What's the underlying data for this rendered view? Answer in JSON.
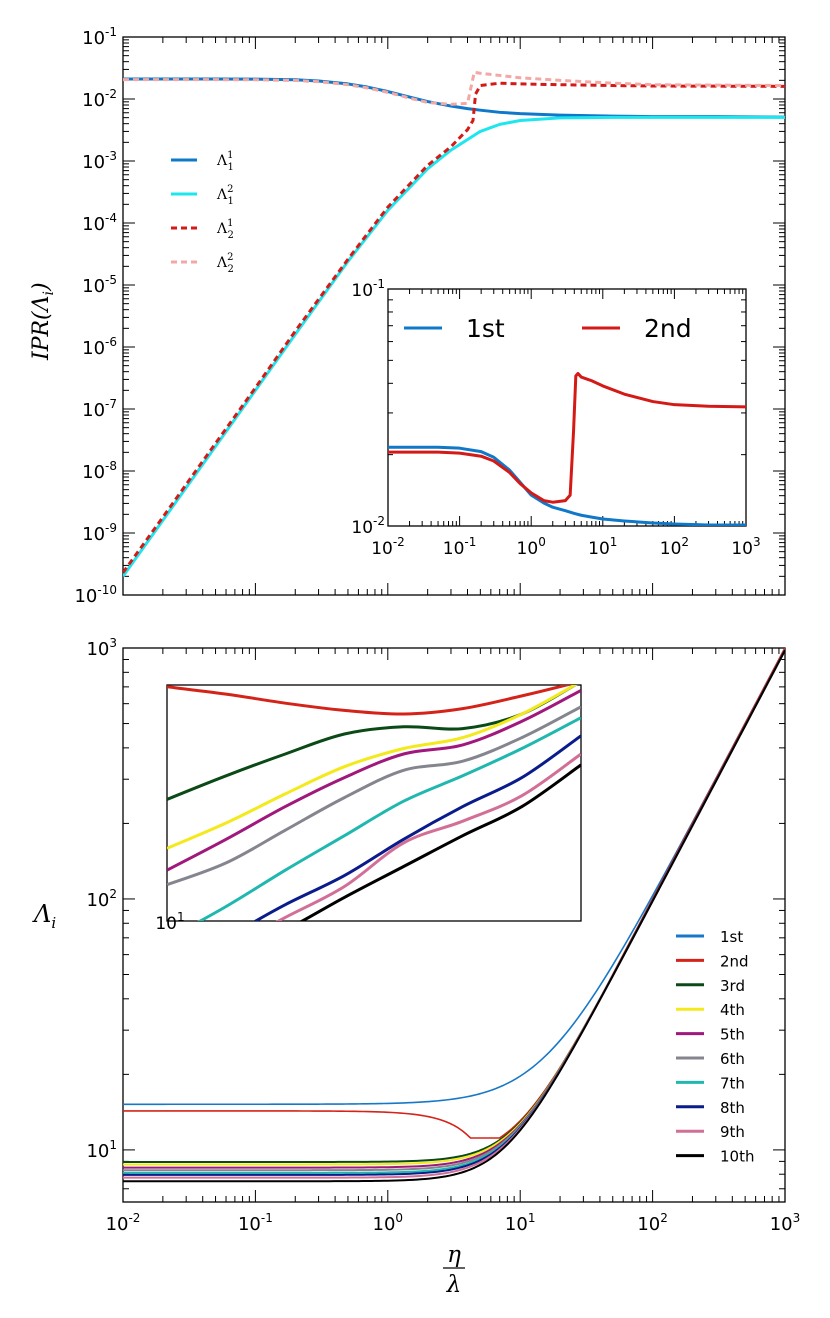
{
  "chart_data": [
    {
      "id": "top",
      "type": "line",
      "xscale": "log",
      "yscale": "log",
      "xlim": [
        0.01,
        1000
      ],
      "ylim": [
        1e-10,
        0.1
      ],
      "xlabel": "",
      "ylabel": "IPR(Λ_i)",
      "xticks_shown": false,
      "yticks": [
        {
          "b": "10",
          "e": "-10"
        },
        {
          "b": "10",
          "e": "-9"
        },
        {
          "b": "10",
          "e": "-8"
        },
        {
          "b": "10",
          "e": "-7"
        },
        {
          "b": "10",
          "e": "-6"
        },
        {
          "b": "10",
          "e": "-5"
        },
        {
          "b": "10",
          "e": "-4"
        },
        {
          "b": "10",
          "e": "-3"
        },
        {
          "b": "10",
          "e": "-2"
        },
        {
          "b": "10",
          "e": "-1"
        }
      ],
      "legend_position": "left",
      "series": [
        {
          "name": "Λ₁¹",
          "base": "Λ",
          "sub": "1",
          "sup": "1",
          "color": "#0f78c8",
          "dash": "solid",
          "x": [
            0.01,
            0.05,
            0.1,
            0.2,
            0.3,
            0.5,
            0.7,
            1,
            1.5,
            2,
            3,
            4,
            5,
            7,
            10,
            20,
            50,
            100,
            300,
            1000
          ],
          "y": [
            0.021,
            0.021,
            0.0209,
            0.0204,
            0.0195,
            0.0175,
            0.0156,
            0.0132,
            0.0106,
            0.0091,
            0.0077,
            0.007,
            0.0066,
            0.0061,
            0.0058,
            0.0055,
            0.0053,
            0.0052,
            0.0052,
            0.0051
          ]
        },
        {
          "name": "Λ₁²",
          "base": "Λ",
          "sub": "1",
          "sup": "2",
          "color": "#1ee6ee",
          "dash": "solid",
          "x": [
            0.01,
            0.02,
            0.05,
            0.1,
            0.2,
            0.5,
            1,
            2,
            3,
            5,
            7,
            10,
            20,
            50,
            100,
            1000
          ],
          "y": [
            2e-10,
            1.6e-09,
            2.5e-08,
            2e-07,
            1.6e-06,
            2.4e-05,
            0.00016,
            0.00075,
            0.0015,
            0.003,
            0.0039,
            0.0045,
            0.00495,
            0.00505,
            0.00505,
            0.00505
          ]
        },
        {
          "name": "Λ₂¹",
          "base": "Λ",
          "sub": "2",
          "sup": "1",
          "color": "#d41a17",
          "dash": "dash",
          "x": [
            0.01,
            0.02,
            0.05,
            0.1,
            0.2,
            0.5,
            1,
            2,
            3,
            4,
            4.4,
            4.6,
            5,
            7,
            10,
            20,
            50,
            100,
            1000
          ],
          "y": [
            2.3e-10,
            1.8e-09,
            2.8e-08,
            2.2e-07,
            1.8e-06,
            2.6e-05,
            0.00018,
            0.00085,
            0.0017,
            0.0032,
            0.0045,
            0.012,
            0.0165,
            0.018,
            0.0175,
            0.017,
            0.0165,
            0.0162,
            0.016
          ]
        },
        {
          "name": "Λ₂²",
          "base": "Λ",
          "sub": "2",
          "sup": "2",
          "color": "#f2a8a4",
          "dash": "dash",
          "x": [
            0.01,
            0.05,
            0.1,
            0.2,
            0.3,
            0.5,
            0.7,
            1,
            1.5,
            2,
            3,
            4,
            4.5,
            5,
            7,
            10,
            20,
            50,
            100,
            1000
          ],
          "y": [
            0.0205,
            0.0205,
            0.0204,
            0.0199,
            0.019,
            0.017,
            0.0151,
            0.0128,
            0.0102,
            0.0088,
            0.0082,
            0.0085,
            0.027,
            0.026,
            0.024,
            0.022,
            0.02,
            0.018,
            0.017,
            0.0165
          ]
        }
      ],
      "inset": {
        "type": "line",
        "xscale": "log",
        "yscale": "log",
        "xlim": [
          0.01,
          1000
        ],
        "ylim": [
          0.01,
          0.1
        ],
        "xticks": [
          {
            "b": "10",
            "e": "-2"
          },
          {
            "b": "10",
            "e": "-1"
          },
          {
            "b": "10",
            "e": "0"
          },
          {
            "b": "10",
            "e": "1"
          },
          {
            "b": "10",
            "e": "2"
          },
          {
            "b": "10",
            "e": "3"
          }
        ],
        "yticks": [
          {
            "b": "10",
            "e": "-2"
          },
          {
            "b": "10",
            "e": "-1"
          }
        ],
        "legend_position": "top",
        "series": [
          {
            "name": "1st",
            "color": "#0f78c8",
            "x": [
              0.01,
              0.05,
              0.1,
              0.2,
              0.3,
              0.5,
              0.7,
              1,
              1.5,
              2,
              3,
              4,
              5,
              7,
              10,
              20,
              50,
              100,
              300,
              1000
            ],
            "y": [
              0.0215,
              0.0215,
              0.0213,
              0.0206,
              0.0195,
              0.0172,
              0.0153,
              0.0135,
              0.0125,
              0.012,
              0.0116,
              0.0113,
              0.0111,
              0.0109,
              0.0107,
              0.0105,
              0.0103,
              0.0102,
              0.0101,
              0.0101
            ]
          },
          {
            "name": "2nd",
            "color": "#d41a17",
            "x": [
              0.01,
              0.05,
              0.1,
              0.2,
              0.3,
              0.5,
              0.7,
              1,
              1.5,
              2,
              3,
              3.5,
              3.9,
              4.2,
              4.5,
              5,
              7,
              10,
              20,
              50,
              100,
              300,
              1000
            ],
            "y": [
              0.0205,
              0.0205,
              0.0203,
              0.0197,
              0.0188,
              0.0168,
              0.0151,
              0.0138,
              0.0128,
              0.0126,
              0.0128,
              0.0135,
              0.025,
              0.043,
              0.044,
              0.0425,
              0.041,
              0.039,
              0.036,
              0.0335,
              0.0325,
              0.032,
              0.0318
            ]
          }
        ]
      }
    },
    {
      "id": "bottom",
      "type": "line",
      "xscale": "log",
      "yscale": "log",
      "xlim": [
        0.01,
        1000
      ],
      "ylim": [
        6.2,
        1000
      ],
      "xlabel": "η/λ",
      "ylabel": "Λ_i",
      "xticks": [
        {
          "b": "10",
          "e": "-2"
        },
        {
          "b": "10",
          "e": "-1"
        },
        {
          "b": "10",
          "e": "0"
        },
        {
          "b": "10",
          "e": "1"
        },
        {
          "b": "10",
          "e": "2"
        },
        {
          "b": "10",
          "e": "3"
        }
      ],
      "yticks": [
        {
          "b": "10",
          "e": "1"
        },
        {
          "b": "10",
          "e": "2"
        },
        {
          "b": "10",
          "e": "3"
        }
      ],
      "legend_position": "bottom-right",
      "series": [
        {
          "name": "1st",
          "color": "#1878c8",
          "y0": 15.2,
          "lw": 1.6
        },
        {
          "name": "2nd",
          "color": "#d42318",
          "y0": 14.3,
          "lw": 1.6
        },
        {
          "name": "3rd",
          "color": "#0b4a16",
          "y0": 8.95,
          "lw": 2
        },
        {
          "name": "4th",
          "color": "#f3e91b",
          "y0": 8.75,
          "lw": 2
        },
        {
          "name": "5th",
          "color": "#a0187c",
          "y0": 8.5,
          "lw": 2
        },
        {
          "name": "6th",
          "color": "#85858f",
          "y0": 8.3,
          "lw": 2
        },
        {
          "name": "7th",
          "color": "#20b8ae",
          "y0": 8.1,
          "lw": 2
        },
        {
          "name": "8th",
          "color": "#0a1c8c",
          "y0": 7.95,
          "lw": 2
        },
        {
          "name": "9th",
          "color": "#d26f96",
          "y0": 7.75,
          "lw": 2
        },
        {
          "name": "10th",
          "color": "#000000",
          "y0": 7.5,
          "lw": 2
        }
      ],
      "inset": {
        "type": "line",
        "yticks": [
          {
            "b": "10",
            "e": "1"
          }
        ],
        "curves": [
          {
            "name": "2nd",
            "color": "#d42318",
            "y": [
              0.99,
              0.95,
              0.9,
              0.86,
              0.84,
              0.87,
              0.94,
              1.02
            ]
          },
          {
            "name": "3rd",
            "color": "#0b4a16",
            "y": [
              0.37,
              0.5,
              0.62,
              0.73,
              0.77,
              0.76,
              0.84,
              1.02
            ]
          },
          {
            "name": "4th",
            "color": "#f3e91b",
            "y": [
              0.1,
              0.24,
              0.4,
              0.55,
              0.65,
              0.71,
              0.84,
              1.02
            ]
          },
          {
            "name": "5th",
            "color": "#a0187c",
            "y": [
              -0.02,
              0.15,
              0.33,
              0.49,
              0.62,
              0.67,
              0.8,
              0.97
            ]
          },
          {
            "name": "6th",
            "color": "#85858f",
            "y": [
              -0.1,
              0.02,
              0.2,
              0.38,
              0.53,
              0.58,
              0.71,
              0.88
            ]
          },
          {
            "name": "7th",
            "color": "#20b8ae",
            "y": [
              -0.4,
              -0.22,
              -0.02,
              0.17,
              0.36,
              0.5,
              0.65,
              0.82
            ]
          },
          {
            "name": "8th",
            "color": "#0a1c8c",
            "y": [
              -0.55,
              -0.39,
              -0.21,
              -0.05,
              0.15,
              0.33,
              0.49,
              0.72
            ]
          },
          {
            "name": "9th",
            "color": "#d26f96",
            "y": [
              -0.55,
              -0.45,
              -0.28,
              -0.11,
              0.13,
              0.25,
              0.39,
              0.62
            ]
          },
          {
            "name": "10th",
            "color": "#000000",
            "y": [
              -0.55,
              -0.5,
              -0.35,
              -0.17,
              0.0,
              0.17,
              0.33,
              0.56
            ]
          }
        ]
      }
    }
  ]
}
